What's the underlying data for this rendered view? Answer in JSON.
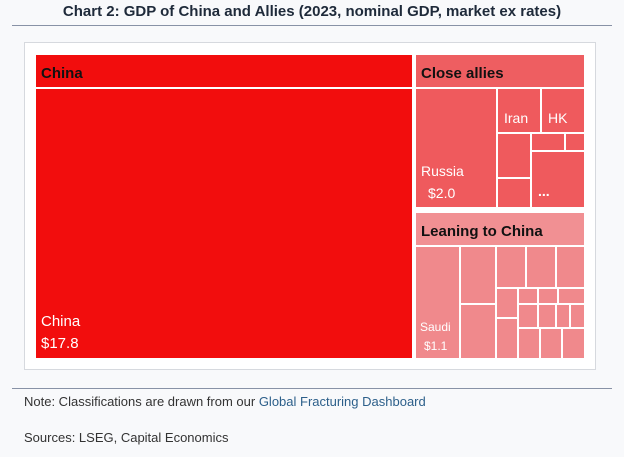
{
  "title": "Chart 2: GDP of China and Allies (2023, nominal GDP, market ex rates)",
  "note": {
    "prefix": "Note: Classifications are drawn from our ",
    "link": "Global Fracturing Dashboard"
  },
  "sources": "Sources: LSEG, Capital Economics",
  "colors": {
    "china": "#f20d0d",
    "close_allies": "#ef5a5d",
    "close_allies_header": "#ee5e61",
    "leaning": "#f0898c",
    "leaning_header": "#f19093",
    "border": "#ffffff"
  },
  "chart_data": {
    "type": "treemap",
    "units": "US$ trillion",
    "groups": [
      {
        "name": "China",
        "items": [
          {
            "name": "China",
            "value": 17.8,
            "label": "China",
            "value_label": "$17.8"
          }
        ]
      },
      {
        "name": "Close allies",
        "items": [
          {
            "name": "Russia",
            "value": 2.0,
            "label": "Russia",
            "value_label": "$2.0"
          },
          {
            "name": "Iran",
            "label": "Iran"
          },
          {
            "name": "HK",
            "label": "HK"
          },
          {
            "name": "Other close allies",
            "label": "..."
          }
        ]
      },
      {
        "name": "Leaning to China",
        "items": [
          {
            "name": "Saudi",
            "value": 1.1,
            "label": "Saudi",
            "value_label": "$1.1"
          }
        ]
      }
    ]
  }
}
